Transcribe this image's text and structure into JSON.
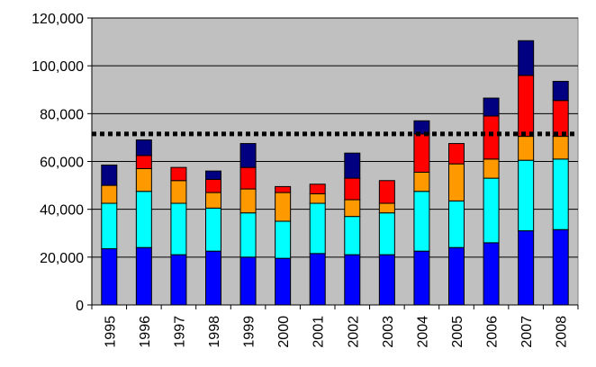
{
  "chart_data": {
    "type": "bar",
    "stacked": true,
    "categories": [
      "1995",
      "1996",
      "1997",
      "1998",
      "1999",
      "2000",
      "2001",
      "2002",
      "2003",
      "2004",
      "2005",
      "2006",
      "2007",
      "2008"
    ],
    "ylim": [
      0,
      120000
    ],
    "yticks": [
      {
        "value": 0,
        "label": "0"
      },
      {
        "value": 20000,
        "label": "20,000"
      },
      {
        "value": 40000,
        "label": "40,000"
      },
      {
        "value": 60000,
        "label": "60,000"
      },
      {
        "value": 80000,
        "label": "80,000"
      },
      {
        "value": 100000,
        "label": "100,000"
      },
      {
        "value": 120000,
        "label": "120,000"
      }
    ],
    "grid": true,
    "plot_background": "#c0c0c0",
    "reference_line": {
      "value": 71500,
      "style": "dotted",
      "color": "#000000"
    },
    "series": [
      {
        "color": "#0000ff",
        "values": [
          23500,
          24000,
          21000,
          22500,
          20000,
          19500,
          21500,
          21000,
          21000,
          22500,
          24000,
          26000,
          31000,
          31500
        ]
      },
      {
        "color": "#00ffff",
        "values": [
          19000,
          23500,
          21500,
          18000,
          18500,
          15500,
          21000,
          16000,
          17500,
          25000,
          19500,
          27000,
          29500,
          29500
        ]
      },
      {
        "color": "#ff9900",
        "values": [
          7500,
          9500,
          9500,
          6500,
          10000,
          12000,
          4000,
          7000,
          4000,
          8000,
          15500,
          8000,
          10000,
          9500
        ]
      },
      {
        "color": "#ff0000",
        "values": [
          0,
          5500,
          5500,
          5500,
          9000,
          2500,
          4000,
          9000,
          9500,
          16000,
          8500,
          18000,
          25500,
          15000
        ]
      },
      {
        "color": "#000080",
        "values": [
          8500,
          6500,
          0,
          3500,
          10000,
          0,
          0,
          10500,
          0,
          5500,
          0,
          7500,
          14500,
          8000
        ]
      }
    ]
  }
}
